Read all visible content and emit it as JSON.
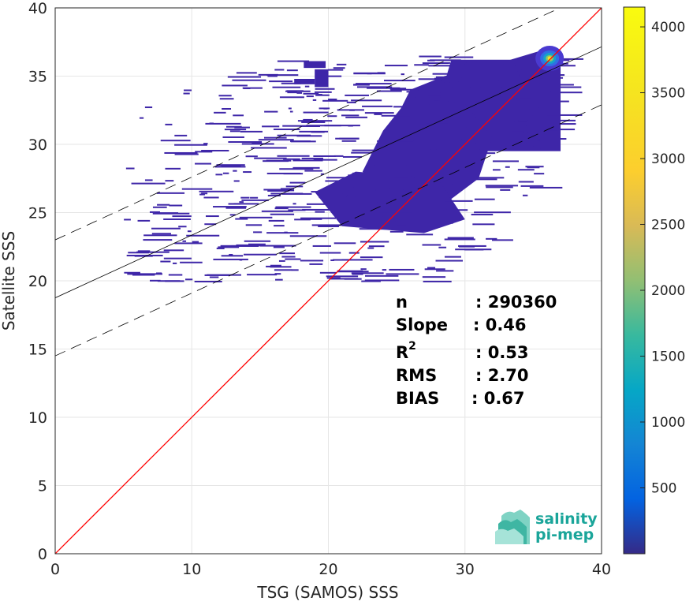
{
  "chart_data": {
    "type": "heatmap",
    "xlabel": "TSG (SAMOS) SSS",
    "ylabel": "Satellite SSS",
    "xlim": [
      0,
      40
    ],
    "ylim": [
      0,
      40
    ],
    "xticks": [
      0,
      10,
      20,
      30,
      40
    ],
    "yticks": [
      0,
      5,
      10,
      15,
      20,
      25,
      30,
      35,
      40
    ],
    "grid": true,
    "colorbar": {
      "range": [
        0,
        4150
      ],
      "ticks": [
        500,
        1000,
        1500,
        2000,
        2500,
        3000,
        3500,
        4000
      ],
      "colormap": "parula"
    },
    "lines": [
      {
        "name": "identity",
        "slope": 1,
        "intercept": 0,
        "color": "#ff0000",
        "style": "solid"
      },
      {
        "name": "regression",
        "slope": 0.46,
        "intercept": 18.75,
        "color": "#000000",
        "style": "solid"
      },
      {
        "name": "regression-plus",
        "slope": 0.46,
        "intercept": 23.0,
        "color": "#000000",
        "style": "dashed"
      },
      {
        "name": "regression-minus",
        "slope": 0.46,
        "intercept": 14.5,
        "color": "#000000",
        "style": "dashed"
      }
    ],
    "density_peak": {
      "x": 36.2,
      "y": 36.3
    },
    "stats": [
      {
        "label": "n",
        "value": ": 290360"
      },
      {
        "label": "Slope",
        "value": ": 0.46"
      },
      {
        "label": "R",
        "sup": "2",
        "value": ": 0.53"
      },
      {
        "label": "RMS",
        "value": ": 2.70"
      },
      {
        "label": "BIAS",
        "value": ": 0.67"
      }
    ]
  },
  "logo": {
    "line1": "salinity",
    "line2": "pi-mep"
  },
  "colors": {
    "identity_line": "#ff0000",
    "regression_line": "#000000",
    "density_low": "#3e26a8",
    "logo": "#1aa59a"
  }
}
